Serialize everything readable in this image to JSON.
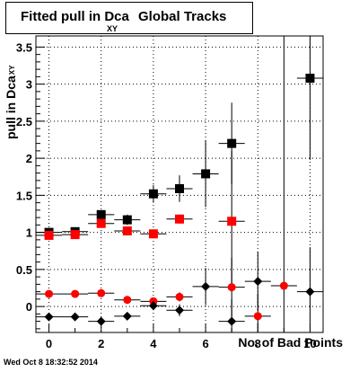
{
  "title": {
    "main": "Fitted pull in Dca",
    "subscript": "XY",
    "rest": "Global Tracks"
  },
  "footer": "Wed Oct  8 18:32:52 2014",
  "chart_data": {
    "type": "scatter",
    "title": "Fitted pull in Dca XY Global Tracks",
    "xlabel": "No. of Bad Points",
    "ylabel": "pull in Dca",
    "ylabel_subscript": "XY",
    "xlim": [
      -0.5,
      10.5
    ],
    "ylim": [
      -0.35,
      3.65
    ],
    "xticks": [
      0,
      2,
      4,
      6,
      8,
      10
    ],
    "yticks": [
      0,
      0.5,
      1,
      1.5,
      2,
      2.5,
      3,
      3.5
    ],
    "ytick_labels": [
      "0",
      "0.5",
      "1",
      "1.5",
      "2",
      "2.5",
      "3",
      "3.5"
    ],
    "grid": true,
    "series": [
      {
        "marker": "square",
        "color": "#000000",
        "x": [
          0,
          1,
          2,
          3,
          4,
          5,
          6,
          7,
          10
        ],
        "y": [
          1.0,
          1.01,
          1.24,
          1.17,
          1.52,
          1.59,
          1.79,
          2.2,
          3.08
        ],
        "yerr": [
          0.04,
          0.04,
          0.06,
          0.07,
          0.12,
          0.18,
          0.45,
          0.55,
          1.1
        ]
      },
      {
        "marker": "square",
        "color": "#ff0000",
        "x": [
          0,
          1,
          2,
          3,
          4,
          5,
          7
        ],
        "y": [
          0.96,
          0.97,
          1.12,
          1.02,
          0.98,
          1.18,
          1.15
        ],
        "yerr": [
          0.03,
          0.03,
          0.05,
          0.05,
          0.06,
          0.06,
          0.95
        ]
      },
      {
        "marker": "circle",
        "color": "#ff0000",
        "x": [
          0,
          1,
          2,
          3,
          4,
          5,
          7,
          8,
          9
        ],
        "y": [
          0.17,
          0.17,
          0.18,
          0.09,
          0.07,
          0.13,
          0.26,
          -0.13,
          0.28
        ],
        "yerr": [
          0.03,
          0.03,
          0.04,
          0.05,
          0.05,
          0.06,
          0.4,
          0.3,
          3.6
        ]
      },
      {
        "marker": "diamond",
        "color": "#000000",
        "x": [
          0,
          1,
          2,
          3,
          4,
          5,
          6,
          7,
          8,
          10
        ],
        "y": [
          -0.14,
          -0.14,
          -0.2,
          -0.13,
          0.01,
          -0.05,
          0.27,
          -0.2,
          0.34,
          0.2
        ],
        "yerr": [
          0.02,
          0.02,
          0.04,
          0.05,
          0.06,
          0.08,
          0.25,
          0.3,
          0.4,
          0.6
        ]
      }
    ]
  }
}
